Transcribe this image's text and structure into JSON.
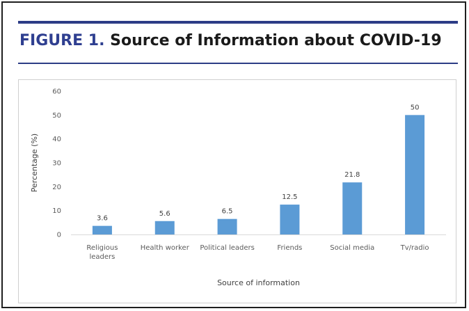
{
  "figure": {
    "label": "FIGURE 1.",
    "caption": "Source of Information about COVID-19"
  },
  "colors": {
    "bar": "#5b9bd5",
    "rule": "#2c3c86",
    "label": "#2f3f90"
  },
  "chart_data": {
    "type": "bar",
    "categories": [
      [
        "Religious",
        "leaders"
      ],
      [
        "Health worker"
      ],
      [
        "Political leaders"
      ],
      [
        "Friends"
      ],
      [
        "Social media"
      ],
      [
        "Tv/radio"
      ]
    ],
    "values": [
      3.6,
      5.6,
      6.5,
      12.5,
      21.8,
      50
    ],
    "data_labels": [
      "3.6",
      "5.6",
      "6.5",
      "12.5",
      "21.8",
      "50"
    ],
    "xlabel": "Source of information",
    "ylabel": "Percentage (%)",
    "ylim": [
      0,
      60
    ],
    "yticks": [
      0,
      10,
      20,
      30,
      40,
      50,
      60
    ],
    "grid": false,
    "legend": "none"
  }
}
